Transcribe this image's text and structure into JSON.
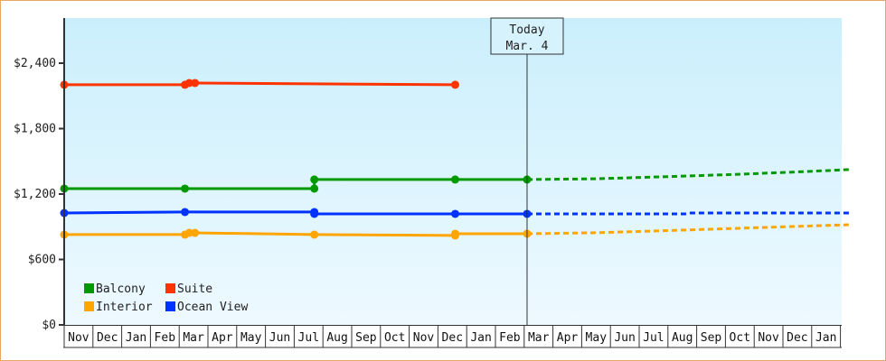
{
  "chart_data": {
    "type": "line",
    "title": "",
    "xlabel": "",
    "ylabel": "",
    "ylim": [
      0,
      2800
    ],
    "yticks": [
      {
        "value": 0,
        "label": "$0"
      },
      {
        "value": 600,
        "label": "$600"
      },
      {
        "value": 1200,
        "label": "$1,200"
      },
      {
        "value": 1800,
        "label": "$1,800"
      },
      {
        "value": 2400,
        "label": "$2,400"
      }
    ],
    "x_months": [
      "Nov",
      "Dec",
      "Jan",
      "Feb",
      "Mar",
      "Apr",
      "May",
      "Jun",
      "Jul",
      "Aug",
      "Sep",
      "Oct",
      "Nov",
      "Dec",
      "Jan",
      "Feb",
      "Mar",
      "Apr",
      "May",
      "Jun",
      "Jul",
      "Aug",
      "Sep",
      "Oct",
      "Nov",
      "Dec",
      "Jan"
    ],
    "grid": false,
    "legend_position": "lower-left inside",
    "annotation": {
      "line1": "Today",
      "line2": "Mar. 4",
      "month_index": 16.1
    },
    "series": [
      {
        "name": "Balcony",
        "color": "#009900",
        "points": [
          [
            0,
            1250
          ],
          [
            4.2,
            1250
          ],
          [
            8.7,
            1250
          ],
          [
            8.7,
            1333
          ],
          [
            13.6,
            1333
          ],
          [
            16.1,
            1333
          ]
        ],
        "forecast": [
          [
            16.1,
            1333
          ],
          [
            18.5,
            1340
          ],
          [
            21.0,
            1360
          ],
          [
            23.3,
            1380
          ],
          [
            25.7,
            1405
          ],
          [
            27.3,
            1424
          ]
        ]
      },
      {
        "name": "Suite",
        "color": "#ff3300",
        "points": [
          [
            0,
            2202
          ],
          [
            4.2,
            2202
          ],
          [
            4.35,
            2218
          ],
          [
            4.55,
            2218
          ],
          [
            13.6,
            2202
          ]
        ],
        "forecast": []
      },
      {
        "name": "Interior",
        "color": "#ffa500",
        "points": [
          [
            0,
            828
          ],
          [
            4.2,
            828
          ],
          [
            4.35,
            844
          ],
          [
            4.55,
            844
          ],
          [
            8.7,
            828
          ],
          [
            13.6,
            820
          ],
          [
            13.6,
            836
          ],
          [
            16.1,
            836
          ]
        ],
        "forecast": [
          [
            16.1,
            836
          ],
          [
            18.5,
            845
          ],
          [
            21.0,
            865
          ],
          [
            23.3,
            885
          ],
          [
            25.7,
            905
          ],
          [
            27.3,
            919
          ]
        ]
      },
      {
        "name": "Ocean View",
        "color": "#0033ff",
        "points": [
          [
            0,
            1026
          ],
          [
            4.2,
            1035
          ],
          [
            8.7,
            1035
          ],
          [
            8.7,
            1018
          ],
          [
            13.6,
            1018
          ],
          [
            16.1,
            1018
          ]
        ],
        "forecast": [
          [
            16.1,
            1018
          ],
          [
            21.6,
            1018
          ],
          [
            21.8,
            1026
          ],
          [
            27.3,
            1026
          ]
        ]
      }
    ]
  },
  "legend": [
    {
      "label": "Balcony",
      "color": "#009900"
    },
    {
      "label": "Suite",
      "color": "#ff3300"
    },
    {
      "label": "Interior",
      "color": "#ffa500"
    },
    {
      "label": "Ocean View",
      "color": "#0033ff"
    }
  ],
  "today": {
    "line1": "Today",
    "line2": "Mar. 4"
  },
  "style": {
    "plot_bg_top": "#caeffc",
    "plot_bg_bottom": "#eef9ff",
    "frame_border": "#e8a864",
    "axis_color": "#333333"
  }
}
